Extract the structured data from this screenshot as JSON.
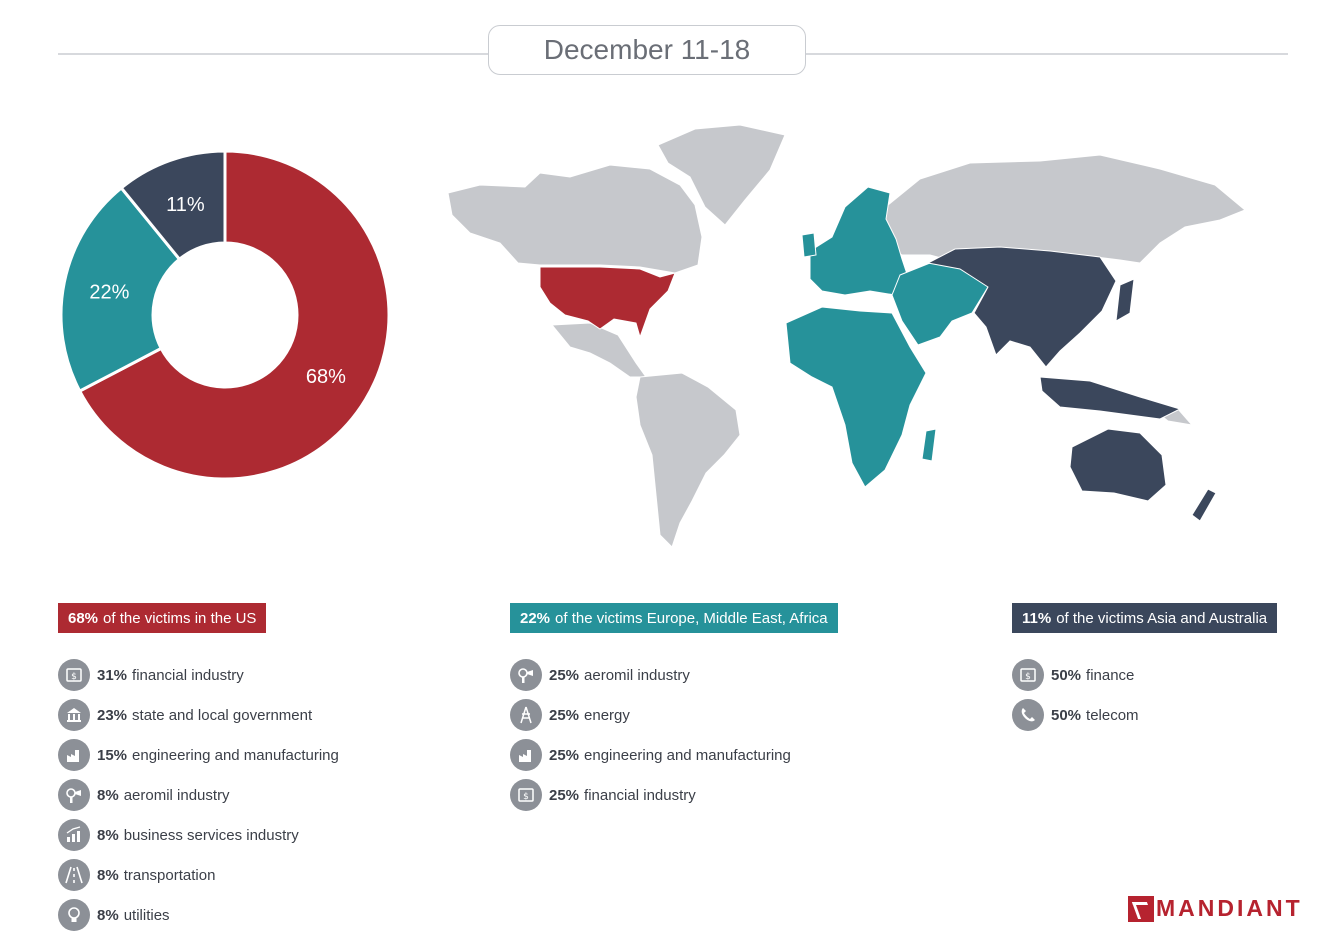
{
  "period": "December 11-18",
  "colors": {
    "us": "#ad2a32",
    "emea": "#26929a",
    "apac": "#3b475c",
    "other": "#c6c8cc",
    "icon": "#8c9097"
  },
  "chart_data": {
    "type": "pie",
    "variant": "donut",
    "slices": [
      {
        "label": "68%",
        "value": 68,
        "color": "#ad2a32"
      },
      {
        "label": "22%",
        "value": 22,
        "color": "#26929a"
      },
      {
        "label": "11%",
        "value": 11,
        "color": "#3b475c"
      }
    ]
  },
  "regions": [
    {
      "pct": "68%",
      "text": "of the victims in the US",
      "color": "#ad2a32",
      "items": [
        {
          "pct": "31%",
          "text": "financial industry",
          "icon": "finance-icon"
        },
        {
          "pct": "23%",
          "text": "state and local government",
          "icon": "government-building-icon"
        },
        {
          "pct": "15%",
          "text": "engineering and manufacturing",
          "icon": "manufacturing-icon"
        },
        {
          "pct": "8%",
          "text": "aeromil industry",
          "icon": "hairdryer-icon"
        },
        {
          "pct": "8%",
          "text": "business services industry",
          "icon": "growth-chart-icon"
        },
        {
          "pct": "8%",
          "text": "transportation",
          "icon": "road-icon"
        },
        {
          "pct": "8%",
          "text": "utilities",
          "icon": "lightbulb-icon"
        }
      ]
    },
    {
      "pct": "22%",
      "text": "of the victims Europe, Middle East, Africa",
      "color": "#26929a",
      "items": [
        {
          "pct": "25%",
          "text": "aeromil industry",
          "icon": "hairdryer-icon"
        },
        {
          "pct": "25%",
          "text": "energy",
          "icon": "power-tower-icon"
        },
        {
          "pct": "25%",
          "text": "engineering and manufacturing",
          "icon": "manufacturing-icon"
        },
        {
          "pct": "25%",
          "text": "financial industry",
          "icon": "finance-icon"
        }
      ]
    },
    {
      "pct": "11%",
      "text": "of the victims Asia and Australia",
      "color": "#3b475c",
      "items": [
        {
          "pct": "50%",
          "text": "finance",
          "icon": "finance-icon"
        },
        {
          "pct": "50%",
          "text": "telecom",
          "icon": "phone-icon"
        }
      ]
    }
  ],
  "brand": "MANDIANT"
}
